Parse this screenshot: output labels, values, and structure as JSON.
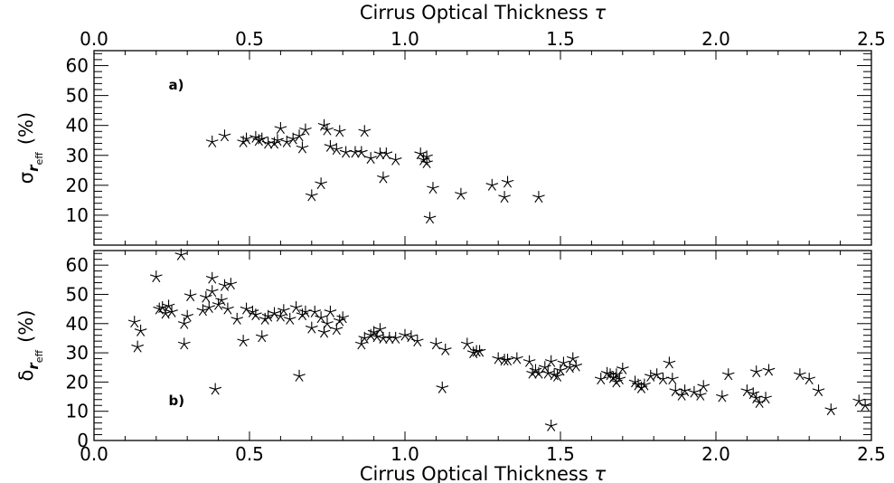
{
  "chart_data": [
    {
      "type": "scatter",
      "panel_label": "a)",
      "x_title": "Cirrus Optical Thickness",
      "x_symbol": "τ",
      "y_title_symbol": "σ",
      "y_title_sub": "r",
      "y_title_subsub": "eff",
      "y_title_units": "(%)",
      "xlim": [
        0,
        2.5
      ],
      "ylim": [
        0,
        65
      ],
      "x_ticks": [
        "0.0",
        "0.5",
        "1.0",
        "1.5",
        "2.0",
        "2.5"
      ],
      "y_ticks": [
        "10",
        "20",
        "30",
        "40",
        "50",
        "60"
      ],
      "x_axis_position": "top",
      "grid": false,
      "points": [
        [
          0.38,
          34.5
        ],
        [
          0.42,
          36.5
        ],
        [
          0.48,
          34.5
        ],
        [
          0.49,
          35.5
        ],
        [
          0.52,
          36
        ],
        [
          0.53,
          35
        ],
        [
          0.54,
          35.5
        ],
        [
          0.56,
          34
        ],
        [
          0.58,
          34
        ],
        [
          0.59,
          35
        ],
        [
          0.6,
          39
        ],
        [
          0.62,
          34.5
        ],
        [
          0.64,
          35.5
        ],
        [
          0.66,
          36.5
        ],
        [
          0.67,
          32.5
        ],
        [
          0.68,
          38.5
        ],
        [
          0.7,
          16.5
        ],
        [
          0.73,
          20.5
        ],
        [
          0.74,
          40
        ],
        [
          0.75,
          38.5
        ],
        [
          0.76,
          33
        ],
        [
          0.78,
          32
        ],
        [
          0.79,
          38
        ],
        [
          0.81,
          31
        ],
        [
          0.84,
          31
        ],
        [
          0.86,
          31
        ],
        [
          0.87,
          38
        ],
        [
          0.89,
          29
        ],
        [
          0.92,
          30.5
        ],
        [
          0.93,
          22.5
        ],
        [
          0.94,
          30.5
        ],
        [
          0.97,
          28.5
        ],
        [
          1.05,
          30.5
        ],
        [
          1.06,
          28.5
        ],
        [
          1.07,
          27.5
        ],
        [
          1.07,
          29.5
        ],
        [
          1.08,
          9
        ],
        [
          1.09,
          19
        ],
        [
          1.18,
          17
        ],
        [
          1.28,
          20
        ],
        [
          1.32,
          16
        ],
        [
          1.33,
          21
        ],
        [
          1.43,
          16
        ]
      ]
    },
    {
      "type": "scatter",
      "panel_label": "b)",
      "x_title": "Cirrus Optical Thickness",
      "x_symbol": "τ",
      "y_title_symbol": "δ",
      "y_title_sub": "r",
      "y_title_subsub": "eff",
      "y_title_units": "(%)",
      "xlim": [
        0,
        2.5
      ],
      "ylim": [
        0,
        65
      ],
      "x_ticks": [
        "0.0",
        "0.5",
        "1.0",
        "1.5",
        "2.0",
        "2.5"
      ],
      "y_ticks": [
        "0",
        "10",
        "20",
        "30",
        "40",
        "50",
        "60"
      ],
      "x_axis_position": "bottom",
      "grid": false,
      "points": [
        [
          0.13,
          40.5
        ],
        [
          0.14,
          32
        ],
        [
          0.15,
          37.5
        ],
        [
          0.2,
          56
        ],
        [
          0.21,
          45
        ],
        [
          0.22,
          45.5
        ],
        [
          0.23,
          43.5
        ],
        [
          0.24,
          46
        ],
        [
          0.25,
          44
        ],
        [
          0.28,
          63.5
        ],
        [
          0.29,
          33
        ],
        [
          0.29,
          40
        ],
        [
          0.3,
          42.5
        ],
        [
          0.31,
          49.5
        ],
        [
          0.35,
          44.5
        ],
        [
          0.36,
          49
        ],
        [
          0.37,
          45.5
        ],
        [
          0.38,
          51
        ],
        [
          0.38,
          55.5
        ],
        [
          0.39,
          17.5
        ],
        [
          0.4,
          46.5
        ],
        [
          0.41,
          48
        ],
        [
          0.42,
          53
        ],
        [
          0.43,
          45
        ],
        [
          0.44,
          53.5
        ],
        [
          0.46,
          41.5
        ],
        [
          0.48,
          34
        ],
        [
          0.49,
          45
        ],
        [
          0.51,
          44
        ],
        [
          0.52,
          43
        ],
        [
          0.54,
          35.5
        ],
        [
          0.55,
          41.5
        ],
        [
          0.56,
          42.5
        ],
        [
          0.58,
          43.5
        ],
        [
          0.6,
          42.5
        ],
        [
          0.61,
          44.5
        ],
        [
          0.63,
          41.5
        ],
        [
          0.65,
          45.5
        ],
        [
          0.66,
          22
        ],
        [
          0.67,
          43
        ],
        [
          0.68,
          44
        ],
        [
          0.7,
          38.5
        ],
        [
          0.71,
          44
        ],
        [
          0.73,
          42
        ],
        [
          0.74,
          37
        ],
        [
          0.75,
          40
        ],
        [
          0.76,
          44
        ],
        [
          0.78,
          38
        ],
        [
          0.79,
          41
        ],
        [
          0.8,
          42
        ],
        [
          0.86,
          33
        ],
        [
          0.87,
          35
        ],
        [
          0.89,
          36
        ],
        [
          0.9,
          37
        ],
        [
          0.91,
          35.5
        ],
        [
          0.92,
          38
        ],
        [
          0.93,
          35
        ],
        [
          0.95,
          35
        ],
        [
          0.97,
          35
        ],
        [
          1.0,
          36
        ],
        [
          1.02,
          35.5
        ],
        [
          1.04,
          34
        ],
        [
          1.1,
          33
        ],
        [
          1.12,
          18
        ],
        [
          1.13,
          31
        ],
        [
          1.2,
          33
        ],
        [
          1.22,
          30
        ],
        [
          1.23,
          30.5
        ],
        [
          1.24,
          30.5
        ],
        [
          1.3,
          28
        ],
        [
          1.32,
          27.5
        ],
        [
          1.33,
          27.5
        ],
        [
          1.36,
          28
        ],
        [
          1.4,
          27
        ],
        [
          1.41,
          23
        ],
        [
          1.42,
          24
        ],
        [
          1.43,
          23
        ],
        [
          1.45,
          25
        ],
        [
          1.46,
          23
        ],
        [
          1.47,
          27
        ],
        [
          1.47,
          5
        ],
        [
          1.48,
          22.5
        ],
        [
          1.49,
          22
        ],
        [
          1.5,
          24
        ],
        [
          1.51,
          26.5
        ],
        [
          1.53,
          25
        ],
        [
          1.54,
          28
        ],
        [
          1.55,
          25.5
        ],
        [
          1.63,
          21
        ],
        [
          1.65,
          23
        ],
        [
          1.66,
          22.5
        ],
        [
          1.67,
          21.5
        ],
        [
          1.68,
          22.5
        ],
        [
          1.68,
          20
        ],
        [
          1.69,
          21
        ],
        [
          1.7,
          24.5
        ],
        [
          1.74,
          20
        ],
        [
          1.75,
          19
        ],
        [
          1.76,
          18
        ],
        [
          1.77,
          19
        ],
        [
          1.79,
          22
        ],
        [
          1.81,
          22.5
        ],
        [
          1.83,
          21
        ],
        [
          1.85,
          26.5
        ],
        [
          1.86,
          21
        ],
        [
          1.87,
          17
        ],
        [
          1.89,
          15.5
        ],
        [
          1.9,
          17
        ],
        [
          1.93,
          16.5
        ],
        [
          1.95,
          15.5
        ],
        [
          1.96,
          18.5
        ],
        [
          2.02,
          15
        ],
        [
          2.04,
          22.5
        ],
        [
          2.1,
          17
        ],
        [
          2.12,
          16
        ],
        [
          2.13,
          14.5
        ],
        [
          2.13,
          23.5
        ],
        [
          2.14,
          13
        ],
        [
          2.16,
          14.5
        ],
        [
          2.17,
          24
        ],
        [
          2.27,
          22.5
        ],
        [
          2.3,
          21
        ],
        [
          2.33,
          17
        ],
        [
          2.37,
          10.5
        ],
        [
          2.46,
          13.5
        ],
        [
          2.48,
          12
        ]
      ]
    }
  ]
}
